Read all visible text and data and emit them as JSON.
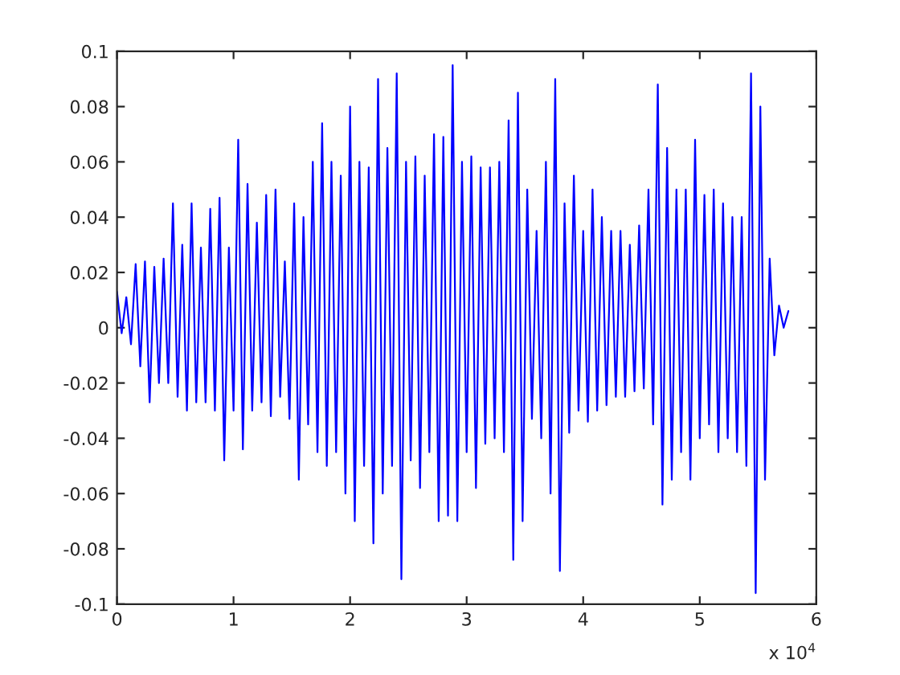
{
  "chart_data": {
    "type": "line",
    "x": [
      0,
      0.04,
      0.08,
      0.12,
      0.16,
      0.2,
      0.24,
      0.28,
      0.32,
      0.36,
      0.4,
      0.44,
      0.48,
      0.52,
      0.56,
      0.6,
      0.64,
      0.68,
      0.72,
      0.76,
      0.8,
      0.84,
      0.88,
      0.92,
      0.96,
      1.0,
      1.04,
      1.08,
      1.12,
      1.16,
      1.2,
      1.24,
      1.28,
      1.32,
      1.36,
      1.4,
      1.44,
      1.48,
      1.52,
      1.56,
      1.6,
      1.64,
      1.68,
      1.72,
      1.76,
      1.8,
      1.84,
      1.88,
      1.92,
      1.96,
      2.0,
      2.04,
      2.08,
      2.12,
      2.16,
      2.2,
      2.24,
      2.28,
      2.32,
      2.36,
      2.4,
      2.44,
      2.48,
      2.52,
      2.56,
      2.6,
      2.64,
      2.68,
      2.72,
      2.76,
      2.8,
      2.84,
      2.88,
      2.92,
      2.96,
      3.0,
      3.04,
      3.08,
      3.12,
      3.16,
      3.2,
      3.24,
      3.28,
      3.32,
      3.36,
      3.4,
      3.44,
      3.48,
      3.52,
      3.56,
      3.6,
      3.64,
      3.68,
      3.72,
      3.76,
      3.8,
      3.84,
      3.88,
      3.92,
      3.96,
      4.0,
      4.04,
      4.08,
      4.12,
      4.16,
      4.2,
      4.24,
      4.28,
      4.32,
      4.36,
      4.4,
      4.44,
      4.48,
      4.52,
      4.56,
      4.6,
      4.64,
      4.68,
      4.72,
      4.76,
      4.8,
      4.84,
      4.88,
      4.92,
      4.96,
      5.0,
      5.04,
      5.08,
      5.12,
      5.16,
      5.2,
      5.24,
      5.28,
      5.32,
      5.36,
      5.4,
      5.44,
      5.48,
      5.52,
      5.56,
      5.6,
      5.64,
      5.68,
      5.72,
      5.76
    ],
    "series": [
      {
        "color": "#0000ff",
        "values": [
          0.013,
          -0.002,
          0.011,
          -0.006,
          0.023,
          -0.014,
          0.024,
          -0.027,
          0.022,
          -0.02,
          0.025,
          -0.02,
          0.045,
          -0.025,
          0.03,
          -0.03,
          0.045,
          -0.027,
          0.029,
          -0.027,
          0.043,
          -0.03,
          0.047,
          -0.048,
          0.029,
          -0.03,
          0.068,
          -0.044,
          0.052,
          -0.03,
          0.038,
          -0.027,
          0.048,
          -0.032,
          0.05,
          -0.025,
          0.024,
          -0.033,
          0.045,
          -0.055,
          0.04,
          -0.035,
          0.06,
          -0.045,
          0.074,
          -0.05,
          0.06,
          -0.045,
          0.055,
          -0.06,
          0.08,
          -0.07,
          0.06,
          -0.05,
          0.058,
          -0.078,
          0.09,
          -0.06,
          0.065,
          -0.05,
          0.092,
          -0.091,
          0.06,
          -0.048,
          0.062,
          -0.058,
          0.055,
          -0.045,
          0.07,
          -0.07,
          0.069,
          -0.068,
          0.095,
          -0.07,
          0.06,
          -0.045,
          0.062,
          -0.058,
          0.058,
          -0.042,
          0.058,
          -0.04,
          0.06,
          -0.045,
          0.075,
          -0.084,
          0.085,
          -0.07,
          0.05,
          -0.033,
          0.035,
          -0.04,
          0.06,
          -0.06,
          0.09,
          -0.088,
          0.045,
          -0.038,
          0.055,
          -0.03,
          0.035,
          -0.034,
          0.05,
          -0.03,
          0.04,
          -0.028,
          0.035,
          -0.025,
          0.035,
          -0.025,
          0.03,
          -0.023,
          0.037,
          -0.022,
          0.05,
          -0.035,
          0.088,
          -0.064,
          0.065,
          -0.055,
          0.05,
          -0.045,
          0.05,
          -0.055,
          0.068,
          -0.04,
          0.048,
          -0.035,
          0.05,
          -0.045,
          0.045,
          -0.04,
          0.04,
          -0.045,
          0.04,
          -0.05,
          0.092,
          -0.096,
          0.08,
          -0.055,
          0.025,
          -0.01,
          0.008,
          0.0,
          0.006
        ]
      }
    ],
    "xlim": [
      0,
      6
    ],
    "xticks": [
      0,
      1,
      2,
      3,
      4,
      5,
      6
    ],
    "ylim": [
      -0.1,
      0.1
    ],
    "yticks": [
      -0.1,
      -0.08,
      -0.06,
      -0.04,
      -0.02,
      0,
      0.02,
      0.04,
      0.06,
      0.08,
      0.1
    ],
    "annotations": [
      "x 10$^{4}$"
    ],
    "grid": false,
    "legend": false
  }
}
